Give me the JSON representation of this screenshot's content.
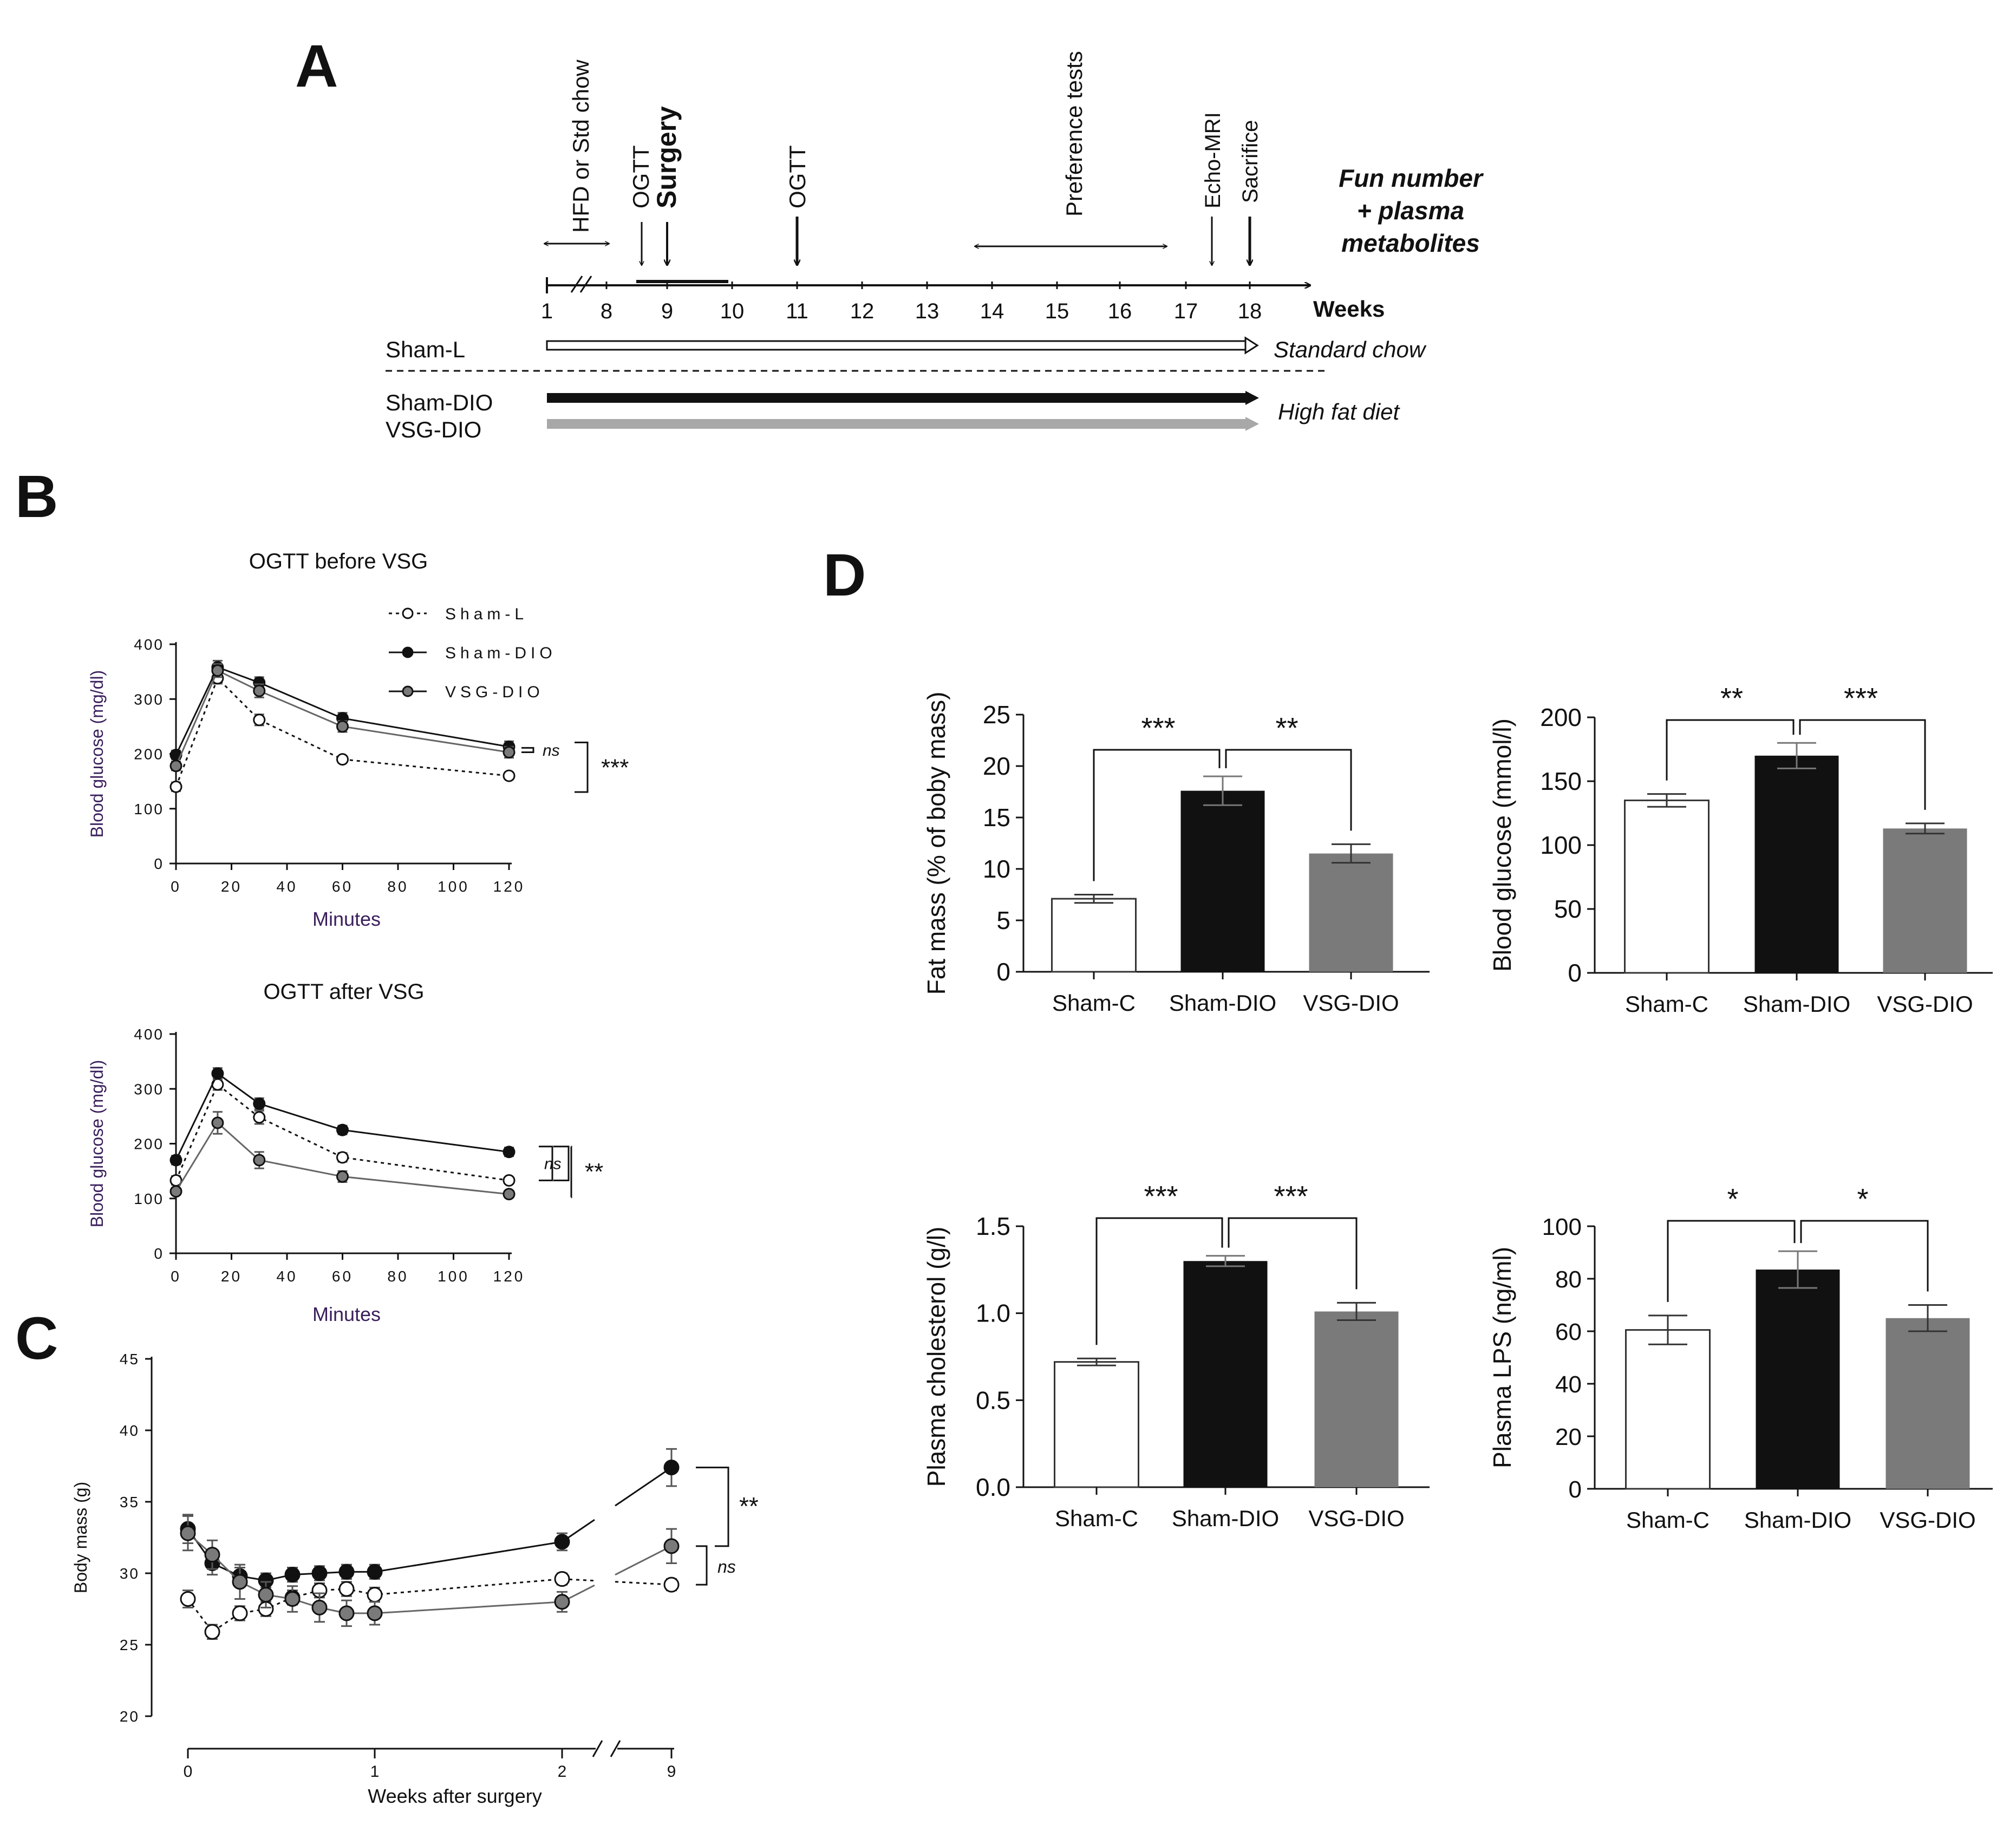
{
  "colors": {
    "black": "#111111",
    "white": "#ffffff",
    "dark_gray": "#7a7a7a",
    "arrow_gray": "#a8a8a8",
    "axis_purple": "#3a1f5c"
  },
  "panels": {
    "A": {
      "letter": "A",
      "axis_ticks": [
        "1",
        "8",
        "9",
        "10",
        "11",
        "12",
        "13",
        "14",
        "15",
        "16",
        "17",
        "18"
      ],
      "axis_unit": "Weeks",
      "events": {
        "hfd": "HFD or Std chow",
        "ogtt1": "OGTT",
        "surgery": "Surgery",
        "ogtt2": "OGTT",
        "preference": "Preference tests",
        "echo": "Echo-MRI",
        "sacrifice": "Sacrifice"
      },
      "final_note": [
        "Fun number",
        "+ plasma",
        "metabolites"
      ],
      "groups": {
        "sham_l": "Sham-L",
        "sham_dio": "Sham-DIO",
        "vsg_dio": "VSG-DIO"
      },
      "diets": {
        "standard": "Standard chow",
        "high_fat": "High fat diet"
      }
    },
    "B": {
      "letter": "B",
      "legend": [
        "Sham-L",
        "Sham-DIO",
        "VSG-DIO"
      ]
    },
    "C": {
      "letter": "C"
    },
    "D": {
      "letter": "D",
      "categories": [
        "Sham-C",
        "Sham-DIO",
        "VSG-DIO"
      ]
    }
  },
  "chart_data": [
    {
      "id": "B1",
      "type": "line",
      "title": "OGTT before VSG",
      "xlabel": "Minutes",
      "ylabel": "Blood glucose (mg/dl)",
      "x": [
        0,
        15,
        30,
        60,
        120
      ],
      "x_ticks": [
        0,
        20,
        40,
        60,
        80,
        100,
        120
      ],
      "xlim": [
        0,
        120
      ],
      "ylim": [
        0,
        400
      ],
      "y_ticks": [
        0,
        100,
        200,
        300,
        400
      ],
      "series": [
        {
          "name": "Sham-L",
          "values": [
            140,
            338,
            262,
            190,
            160
          ],
          "errors": [
            8,
            10,
            10,
            6,
            6
          ]
        },
        {
          "name": "Sham-DIO",
          "values": [
            198,
            358,
            330,
            265,
            213
          ],
          "errors": [
            8,
            12,
            10,
            10,
            10
          ]
        },
        {
          "name": "VSG-DIO",
          "values": [
            178,
            352,
            315,
            250,
            203
          ],
          "errors": [
            8,
            12,
            12,
            10,
            10
          ]
        }
      ],
      "annotations": [
        {
          "text": "ns",
          "between": [
            "Sham-DIO",
            "VSG-DIO"
          ]
        },
        {
          "text": "***",
          "between": [
            "Sham-L",
            "DIO groups"
          ]
        }
      ]
    },
    {
      "id": "B2",
      "type": "line",
      "title": "OGTT after VSG",
      "xlabel": "Minutes",
      "ylabel": "Blood glucose (mg/dl)",
      "x": [
        0,
        15,
        30,
        60,
        120
      ],
      "x_ticks": [
        0,
        20,
        40,
        60,
        80,
        100,
        120
      ],
      "xlim": [
        0,
        120
      ],
      "ylim": [
        0,
        400
      ],
      "y_ticks": [
        0,
        100,
        200,
        300,
        400
      ],
      "series": [
        {
          "name": "Sham-L",
          "values": [
            133,
            308,
            248,
            175,
            133
          ],
          "errors": [
            8,
            10,
            12,
            8,
            6
          ]
        },
        {
          "name": "Sham-DIO",
          "values": [
            170,
            328,
            273,
            225,
            185
          ],
          "errors": [
            8,
            10,
            10,
            8,
            8
          ]
        },
        {
          "name": "VSG-DIO",
          "values": [
            113,
            238,
            170,
            140,
            108
          ],
          "errors": [
            6,
            20,
            15,
            10,
            6
          ]
        }
      ],
      "annotations": [
        {
          "text": "ns",
          "between": [
            "Sham-L",
            "Sham-DIO"
          ]
        },
        {
          "text": "**",
          "between": [
            "Sham-DIO",
            "VSG-DIO"
          ]
        }
      ]
    },
    {
      "id": "C",
      "type": "line",
      "title": "",
      "xlabel": "Weeks after surgery",
      "ylabel": "Body mass (g)",
      "x_ticks": [
        "0",
        "1",
        "2",
        "9"
      ],
      "x": [
        0,
        0.14,
        0.29,
        0.43,
        0.57,
        0.71,
        0.86,
        1,
        2,
        9
      ],
      "ylim": [
        20,
        45
      ],
      "y_ticks": [
        20,
        25,
        30,
        35,
        40,
        45
      ],
      "series": [
        {
          "name": "Sham-L",
          "values": [
            28.2,
            25.9,
            27.2,
            27.5,
            28.3,
            28.8,
            28.9,
            28.5,
            29.6,
            29.2
          ],
          "errors": [
            0.6,
            0.5,
            0.5,
            0.5,
            0.5,
            0.5,
            0.5,
            0.5,
            0.4,
            0.4
          ]
        },
        {
          "name": "Sham-DIO",
          "values": [
            33.1,
            30.7,
            29.8,
            29.5,
            29.9,
            30.0,
            30.1,
            30.1,
            32.2,
            37.4
          ],
          "errors": [
            1.0,
            0.8,
            0.6,
            0.5,
            0.5,
            0.5,
            0.5,
            0.5,
            0.6,
            1.3
          ]
        },
        {
          "name": "VSG-DIO",
          "values": [
            32.8,
            31.3,
            29.4,
            28.5,
            28.2,
            27.6,
            27.2,
            27.2,
            28.0,
            31.9
          ],
          "errors": [
            1.2,
            1.0,
            1.2,
            0.9,
            0.9,
            1.0,
            0.9,
            0.8,
            0.7,
            1.2
          ]
        }
      ],
      "annotations": [
        {
          "text": "**",
          "between": [
            "Sham-DIO",
            "VSG-DIO"
          ]
        },
        {
          "text": "ns",
          "between": [
            "VSG-DIO",
            "Sham-L"
          ]
        }
      ]
    },
    {
      "id": "D1",
      "type": "bar",
      "ylabel": "Fat mass (% of boby mass)",
      "categories": [
        "Sham-C",
        "Sham-DIO",
        "VSG-DIO"
      ],
      "values": [
        7.1,
        17.6,
        11.5
      ],
      "errors": [
        0.4,
        1.4,
        0.9
      ],
      "ylim": [
        0,
        25
      ],
      "y_ticks": [
        "0",
        "5",
        "10",
        "15",
        "20",
        "25"
      ],
      "significance": [
        {
          "pair": [
            "Sham-C",
            "Sham-DIO"
          ],
          "text": "***"
        },
        {
          "pair": [
            "Sham-DIO",
            "VSG-DIO"
          ],
          "text": "**"
        }
      ]
    },
    {
      "id": "D2",
      "type": "bar",
      "ylabel": "Blood glucose (mmol/l)",
      "categories": [
        "Sham-C",
        "Sham-DIO",
        "VSG-DIO"
      ],
      "values": [
        135,
        170,
        113
      ],
      "errors": [
        5,
        10,
        4
      ],
      "ylim": [
        0,
        200
      ],
      "y_ticks": [
        "0",
        "50",
        "100",
        "150",
        "200"
      ],
      "significance": [
        {
          "pair": [
            "Sham-C",
            "Sham-DIO"
          ],
          "text": "**"
        },
        {
          "pair": [
            "Sham-DIO",
            "VSG-DIO"
          ],
          "text": "***"
        }
      ]
    },
    {
      "id": "D3",
      "type": "bar",
      "ylabel": "Plasma cholesterol (g/l)",
      "categories": [
        "Sham-C",
        "Sham-DIO",
        "VSG-DIO"
      ],
      "values": [
        0.72,
        1.3,
        1.01
      ],
      "errors": [
        0.02,
        0.03,
        0.05
      ],
      "ylim": [
        0,
        1.5
      ],
      "y_ticks": [
        "0.0",
        "0.5",
        "1.0",
        "1.5"
      ],
      "significance": [
        {
          "pair": [
            "Sham-C",
            "Sham-DIO"
          ],
          "text": "***"
        },
        {
          "pair": [
            "Sham-DIO",
            "VSG-DIO"
          ],
          "text": "***"
        }
      ]
    },
    {
      "id": "D4",
      "type": "bar",
      "ylabel": "Plasma LPS (ng/ml)",
      "categories": [
        "Sham-C",
        "Sham-DIO",
        "VSG-DIO"
      ],
      "values": [
        60.5,
        83.5,
        65.0
      ],
      "errors": [
        5.5,
        7.0,
        5.0
      ],
      "ylim": [
        0,
        100
      ],
      "y_ticks": [
        "0",
        "20",
        "40",
        "60",
        "80",
        "100"
      ],
      "significance": [
        {
          "pair": [
            "Sham-C",
            "Sham-DIO"
          ],
          "text": "*"
        },
        {
          "pair": [
            "Sham-DIO",
            "VSG-DIO"
          ],
          "text": "*"
        }
      ]
    }
  ]
}
